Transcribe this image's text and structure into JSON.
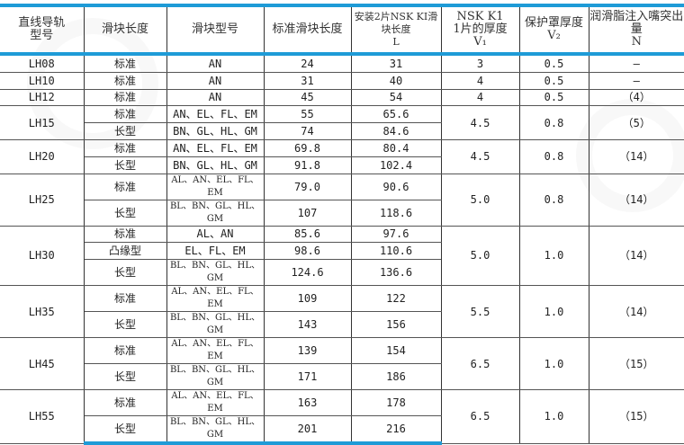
{
  "headers": {
    "rail": "直线导轨型号",
    "length_type": "滑块长度",
    "model": "滑块型号",
    "std_length": "标准滑块长度",
    "l_line1": "安装2片NSK KI滑块长度",
    "l_line2": "L",
    "v1_line1": "NSK K1",
    "v1_line2": "1片的厚度",
    "v1_line3": "V₁",
    "v2_line1": "保护罩厚度",
    "v2_line2": "V₂",
    "n_line1": "润滑脂注入嘴突出量",
    "n_line2": "N"
  },
  "rows": [
    {
      "rail": "LH08",
      "type": "标准",
      "model": "AN",
      "std": "24",
      "L": "31",
      "V1": "3",
      "V2": "0.5",
      "N": "–"
    },
    {
      "rail": "LH10",
      "type": "标准",
      "model": "AN",
      "std": "31",
      "L": "40",
      "V1": "4",
      "V2": "0.5",
      "N": "–"
    },
    {
      "rail": "LH12",
      "type": "标准",
      "model": "AN",
      "std": "45",
      "L": "54",
      "V1": "4",
      "V2": "0.5",
      "N": "（4）"
    },
    {
      "rail": "LH15",
      "type": "标准",
      "model": "AN、EL、FL、EM",
      "std": "55",
      "L": "65.6",
      "V1": "4.5",
      "V2": "0.8",
      "N": "（5）"
    },
    {
      "type": "长型",
      "model": "BN、GL、HL、GM",
      "std": "74",
      "L": "84.6"
    },
    {
      "rail": "LH20",
      "type": "标准",
      "model": "AN、EL、FL、EM",
      "std": "69.8",
      "L": "80.4",
      "V1": "4.5",
      "V2": "0.8",
      "N": "（14）"
    },
    {
      "type": "长型",
      "model": "BN、GL、HL、GM",
      "std": "91.8",
      "L": "102.4"
    },
    {
      "rail": "LH25",
      "type": "标准",
      "model": "AL、AN、EL、FL、EM",
      "std": "79.0",
      "L": "90.6",
      "V1": "5.0",
      "V2": "0.8",
      "N": "（14）"
    },
    {
      "type": "长型",
      "model": "BL、BN、GL、HL、GM",
      "std": "107",
      "L": "118.6"
    },
    {
      "rail": "LH30",
      "type": "标准",
      "model": "AL、AN",
      "std": "85.6",
      "L": "97.6",
      "V1": "5.0",
      "V2": "1.0",
      "N": "（14）"
    },
    {
      "type": "凸缘型",
      "model": "EL、FL、EM",
      "std": "98.6",
      "L": "110.6"
    },
    {
      "type": "长型",
      "model": "BL、BN、GL、HL、GM",
      "std": "124.6",
      "L": "136.6"
    },
    {
      "rail": "LH35",
      "type": "标准",
      "model": "AL、AN、EL、FL、EM",
      "std": "109",
      "L": "122",
      "V1": "5.5",
      "V2": "1.0",
      "N": "（14）"
    },
    {
      "type": "长型",
      "model": "BL、BN、GL、HL、GM",
      "std": "143",
      "L": "156"
    },
    {
      "rail": "LH45",
      "type": "标准",
      "model": "AL、AN、EL、FL、EM",
      "std": "139",
      "L": "154",
      "V1": "6.5",
      "V2": "1.0",
      "N": "（15）"
    },
    {
      "type": "长型",
      "model": "BL、BN、GL、HL、GM",
      "std": "171",
      "L": "186"
    },
    {
      "rail": "LH55",
      "type": "标准",
      "model": "AL、AN、EL、FL、EM",
      "std": "163",
      "L": "178",
      "V1": "6.5",
      "V2": "1.0",
      "N": "（15）"
    },
    {
      "type": "长型",
      "model": "BL、BN、GL、HL、GM",
      "std": "201",
      "L": "216"
    }
  ],
  "colors": {
    "rule": "#1e9bd7",
    "grid": "#333333"
  }
}
